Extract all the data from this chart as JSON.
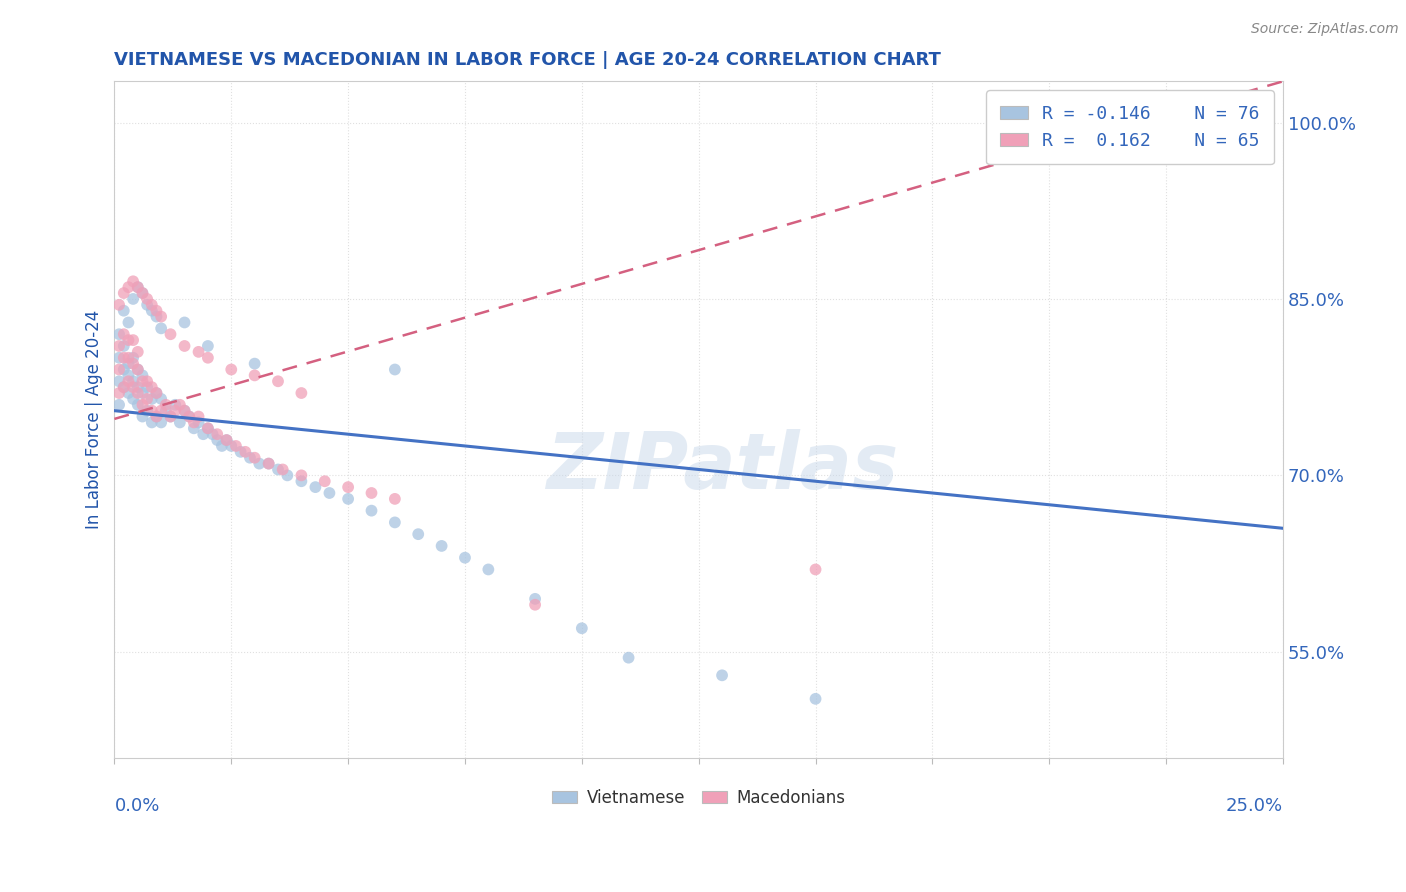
{
  "title": "VIETNAMESE VS MACEDONIAN IN LABOR FORCE | AGE 20-24 CORRELATION CHART",
  "source_text": "Source: ZipAtlas.com",
  "ylabel": "In Labor Force | Age 20-24",
  "ytick_labels": [
    "55.0%",
    "70.0%",
    "85.0%",
    "100.0%"
  ],
  "ytick_values": [
    0.55,
    0.7,
    0.85,
    1.0
  ],
  "xlim": [
    0.0,
    0.25
  ],
  "ylim": [
    0.46,
    1.035
  ],
  "blue_color": "#a8c4e0",
  "pink_color": "#f0a0b8",
  "blue_line_color": "#4472c4",
  "pink_line_color": "#d46080",
  "watermark": "ZIPatlas",
  "dot_size": 72,
  "dot_alpha": 0.75,
  "title_color": "#2255aa",
  "axis_label_color": "#2255aa",
  "tick_label_color": "#3366bb",
  "background_color": "#ffffff",
  "grid_color": "#e0e0e0",
  "blue_line_y0": 0.755,
  "blue_line_y1": 0.655,
  "pink_line_y0": 0.748,
  "pink_line_y1": 1.035,
  "viet_x": [
    0.001,
    0.001,
    0.001,
    0.002,
    0.002,
    0.002,
    0.003,
    0.003,
    0.003,
    0.004,
    0.004,
    0.004,
    0.005,
    0.005,
    0.005,
    0.006,
    0.006,
    0.006,
    0.007,
    0.007,
    0.008,
    0.008,
    0.009,
    0.009,
    0.01,
    0.01,
    0.011,
    0.012,
    0.013,
    0.014,
    0.015,
    0.016,
    0.017,
    0.018,
    0.019,
    0.02,
    0.021,
    0.022,
    0.023,
    0.024,
    0.025,
    0.027,
    0.029,
    0.031,
    0.033,
    0.035,
    0.037,
    0.04,
    0.043,
    0.046,
    0.05,
    0.055,
    0.06,
    0.065,
    0.07,
    0.075,
    0.08,
    0.09,
    0.1,
    0.11,
    0.001,
    0.002,
    0.003,
    0.004,
    0.005,
    0.006,
    0.007,
    0.008,
    0.009,
    0.01,
    0.015,
    0.02,
    0.03,
    0.06,
    0.13,
    0.15
  ],
  "viet_y": [
    0.76,
    0.78,
    0.8,
    0.775,
    0.79,
    0.81,
    0.77,
    0.785,
    0.795,
    0.765,
    0.78,
    0.8,
    0.76,
    0.775,
    0.79,
    0.75,
    0.77,
    0.785,
    0.755,
    0.775,
    0.745,
    0.765,
    0.75,
    0.77,
    0.745,
    0.765,
    0.755,
    0.75,
    0.76,
    0.745,
    0.755,
    0.75,
    0.74,
    0.745,
    0.735,
    0.74,
    0.735,
    0.73,
    0.725,
    0.73,
    0.725,
    0.72,
    0.715,
    0.71,
    0.71,
    0.705,
    0.7,
    0.695,
    0.69,
    0.685,
    0.68,
    0.67,
    0.66,
    0.65,
    0.64,
    0.63,
    0.62,
    0.595,
    0.57,
    0.545,
    0.82,
    0.84,
    0.83,
    0.85,
    0.86,
    0.855,
    0.845,
    0.84,
    0.835,
    0.825,
    0.83,
    0.81,
    0.795,
    0.79,
    0.53,
    0.51
  ],
  "mace_x": [
    0.001,
    0.001,
    0.001,
    0.002,
    0.002,
    0.002,
    0.003,
    0.003,
    0.003,
    0.004,
    0.004,
    0.004,
    0.005,
    0.005,
    0.005,
    0.006,
    0.006,
    0.007,
    0.007,
    0.008,
    0.008,
    0.009,
    0.009,
    0.01,
    0.011,
    0.012,
    0.013,
    0.014,
    0.015,
    0.016,
    0.017,
    0.018,
    0.02,
    0.022,
    0.024,
    0.026,
    0.028,
    0.03,
    0.033,
    0.036,
    0.04,
    0.045,
    0.05,
    0.055,
    0.06,
    0.001,
    0.002,
    0.003,
    0.004,
    0.005,
    0.006,
    0.007,
    0.008,
    0.009,
    0.01,
    0.012,
    0.015,
    0.018,
    0.02,
    0.025,
    0.03,
    0.035,
    0.04,
    0.09,
    0.15
  ],
  "mace_y": [
    0.77,
    0.79,
    0.81,
    0.775,
    0.8,
    0.82,
    0.78,
    0.8,
    0.815,
    0.775,
    0.795,
    0.815,
    0.77,
    0.79,
    0.805,
    0.76,
    0.78,
    0.765,
    0.78,
    0.755,
    0.775,
    0.75,
    0.77,
    0.755,
    0.76,
    0.75,
    0.755,
    0.76,
    0.755,
    0.75,
    0.745,
    0.75,
    0.74,
    0.735,
    0.73,
    0.725,
    0.72,
    0.715,
    0.71,
    0.705,
    0.7,
    0.695,
    0.69,
    0.685,
    0.68,
    0.845,
    0.855,
    0.86,
    0.865,
    0.86,
    0.855,
    0.85,
    0.845,
    0.84,
    0.835,
    0.82,
    0.81,
    0.805,
    0.8,
    0.79,
    0.785,
    0.78,
    0.77,
    0.59,
    0.62
  ]
}
